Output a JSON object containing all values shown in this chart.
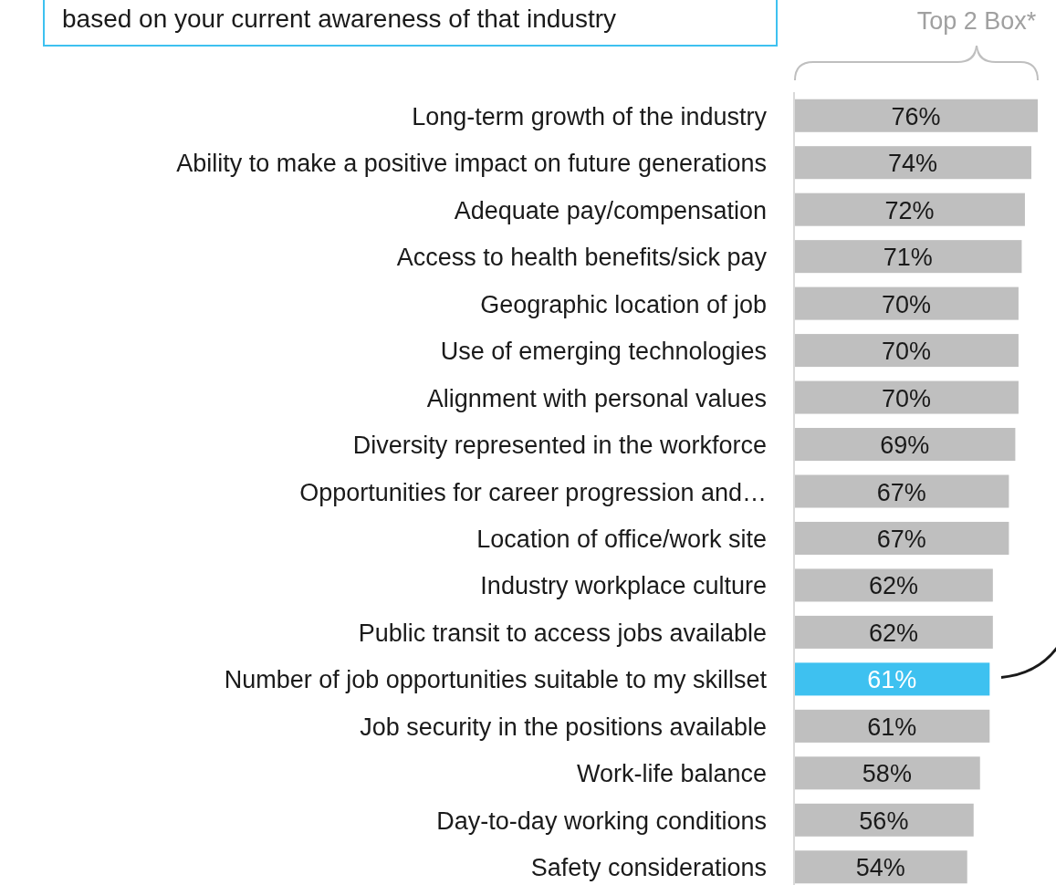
{
  "chart_data": {
    "type": "bar",
    "orientation": "horizontal",
    "relative": false,
    "title": "based on your current awareness of that industry",
    "xlabel": "Top 2 Box*",
    "categories": [
      "Long-term growth of the industry",
      "Ability to make a positive impact on future generations",
      "Adequate pay/compensation",
      "Access to health benefits/sick pay",
      "Geographic location of job",
      "Use of emerging technologies",
      "Alignment with personal values",
      "Diversity represented in the workforce",
      "Opportunities for career progression and…",
      "Location of office/work site",
      "Industry workplace culture",
      "Public transit to access jobs available",
      "Number of job opportunities suitable to my skillset",
      "Job security in the positions available",
      "Work-life balance",
      "Day-to-day working conditions",
      "Safety considerations"
    ],
    "values": [
      76,
      74,
      72,
      71,
      70,
      70,
      70,
      69,
      67,
      67,
      62,
      62,
      61,
      61,
      58,
      56,
      54
    ],
    "value_labels": [
      "76%",
      "74%",
      "72%",
      "71%",
      "70%",
      "70%",
      "70%",
      "69%",
      "67%",
      "67%",
      "62%",
      "62%",
      "61%",
      "61%",
      "58%",
      "56%",
      "54%"
    ],
    "colors": [
      "#bfbfbf",
      "#bfbfbf",
      "#bfbfbf",
      "#bfbfbf",
      "#bfbfbf",
      "#bfbfbf",
      "#bfbfbf",
      "#bfbfbf",
      "#bfbfbf",
      "#bfbfbf",
      "#bfbfbf",
      "#bfbfbf",
      "#3ec1f0",
      "#bfbfbf",
      "#bfbfbf",
      "#bfbfbf",
      "#bfbfbf"
    ]
  }
}
